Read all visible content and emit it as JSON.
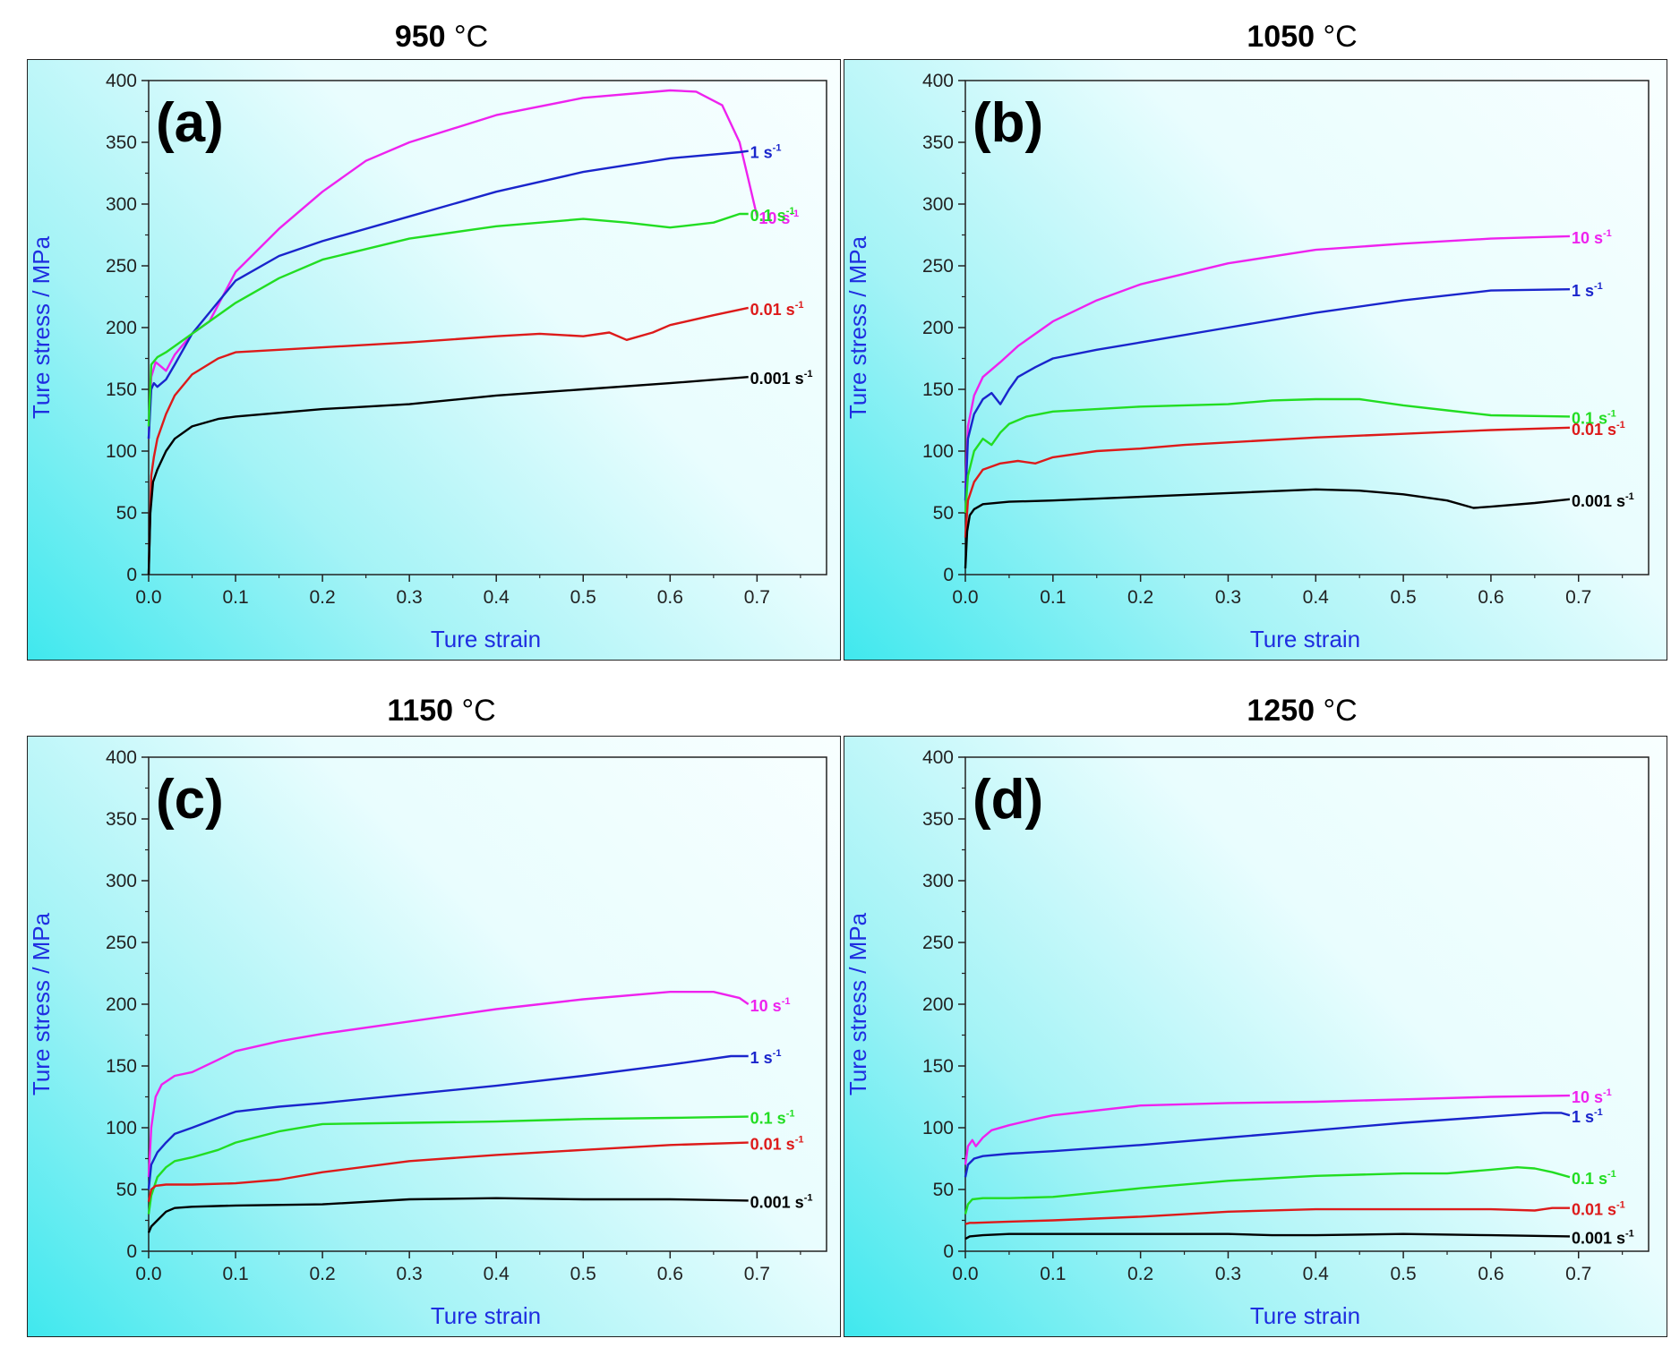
{
  "chart_data": [
    {
      "type": "line",
      "temperature": "950",
      "temperature_unit": "°C",
      "panel_label": "(a)",
      "xlabel": "Ture strain",
      "ylabel": "Ture stress / MPa",
      "xlim": [
        0,
        0.78
      ],
      "ylim": [
        0,
        400
      ],
      "xticks": [
        "0.0",
        "0.1",
        "0.2",
        "0.3",
        "0.4",
        "0.5",
        "0.6",
        "0.7"
      ],
      "yticks": [
        "0",
        "50",
        "100",
        "150",
        "200",
        "250",
        "300",
        "350",
        "400"
      ],
      "series": [
        {
          "name": "10 s-1",
          "rate": "10 s",
          "exp": "-1",
          "color": "#ee22ee",
          "x": [
            0,
            0.003,
            0.008,
            0.015,
            0.02,
            0.03,
            0.05,
            0.07,
            0.1,
            0.15,
            0.2,
            0.25,
            0.3,
            0.4,
            0.5,
            0.6,
            0.63,
            0.66,
            0.68,
            0.69,
            0.7
          ],
          "y": [
            110,
            160,
            172,
            168,
            165,
            178,
            195,
            205,
            245,
            280,
            310,
            335,
            350,
            372,
            386,
            392,
            391,
            380,
            350,
            320,
            290
          ]
        },
        {
          "name": "1 s-1",
          "rate": "1 s",
          "exp": "-1",
          "color": "#1a25cc",
          "x": [
            0,
            0.003,
            0.006,
            0.01,
            0.02,
            0.03,
            0.05,
            0.1,
            0.15,
            0.2,
            0.3,
            0.4,
            0.5,
            0.6,
            0.68,
            0.69
          ],
          "y": [
            110,
            150,
            155,
            152,
            158,
            170,
            195,
            238,
            258,
            270,
            290,
            310,
            326,
            337,
            342,
            343
          ]
        },
        {
          "name": "0.1 s-1",
          "rate": "0.1 s",
          "exp": "-1",
          "color": "#22dd22",
          "x": [
            0,
            0.003,
            0.01,
            0.02,
            0.05,
            0.1,
            0.15,
            0.2,
            0.3,
            0.4,
            0.5,
            0.55,
            0.6,
            0.65,
            0.68,
            0.69
          ],
          "y": [
            120,
            170,
            176,
            180,
            195,
            220,
            240,
            255,
            272,
            282,
            288,
            285,
            281,
            285,
            292,
            292
          ]
        },
        {
          "name": "0.01 s-1",
          "rate": "0.01 s",
          "exp": "-1",
          "color": "#dd1a1a",
          "x": [
            0,
            0.003,
            0.006,
            0.01,
            0.02,
            0.03,
            0.05,
            0.08,
            0.1,
            0.2,
            0.3,
            0.4,
            0.45,
            0.5,
            0.53,
            0.55,
            0.58,
            0.6,
            0.65,
            0.69
          ],
          "y": [
            0,
            80,
            95,
            110,
            130,
            145,
            162,
            175,
            180,
            184,
            188,
            193,
            195,
            193,
            196,
            190,
            196,
            202,
            210,
            216
          ]
        },
        {
          "name": "0.001 s-1",
          "rate": "0.001 s",
          "exp": "-1",
          "color": "#000000",
          "x": [
            0,
            0.002,
            0.005,
            0.01,
            0.02,
            0.03,
            0.05,
            0.08,
            0.1,
            0.2,
            0.3,
            0.4,
            0.5,
            0.6,
            0.69
          ],
          "y": [
            0,
            50,
            75,
            85,
            100,
            110,
            120,
            126,
            128,
            134,
            138,
            145,
            150,
            155,
            160
          ]
        }
      ]
    },
    {
      "type": "line",
      "temperature": "1050",
      "temperature_unit": "°C",
      "panel_label": "(b)",
      "xlabel": "Ture strain",
      "ylabel": "Ture stress / MPa",
      "xlim": [
        0,
        0.78
      ],
      "ylim": [
        0,
        400
      ],
      "xticks": [
        "0.0",
        "0.1",
        "0.2",
        "0.3",
        "0.4",
        "0.5",
        "0.6",
        "0.7"
      ],
      "yticks": [
        "0",
        "50",
        "100",
        "150",
        "200",
        "250",
        "300",
        "350",
        "400"
      ],
      "series": [
        {
          "name": "10 s-1",
          "rate": "10 s",
          "exp": "-1",
          "color": "#ee22ee",
          "x": [
            0,
            0.003,
            0.01,
            0.02,
            0.04,
            0.06,
            0.1,
            0.15,
            0.2,
            0.3,
            0.4,
            0.5,
            0.6,
            0.69
          ],
          "y": [
            70,
            120,
            145,
            160,
            172,
            185,
            205,
            222,
            235,
            252,
            263,
            268,
            272,
            274
          ]
        },
        {
          "name": "1 s-1",
          "rate": "1 s",
          "exp": "-1",
          "color": "#1a25cc",
          "x": [
            0,
            0.003,
            0.01,
            0.02,
            0.03,
            0.04,
            0.05,
            0.06,
            0.08,
            0.1,
            0.15,
            0.2,
            0.3,
            0.4,
            0.5,
            0.6,
            0.69
          ],
          "y": [
            60,
            110,
            130,
            142,
            147,
            138,
            150,
            160,
            168,
            175,
            182,
            188,
            200,
            212,
            222,
            230,
            231
          ]
        },
        {
          "name": "0.1 s-1",
          "rate": "0.1 s",
          "exp": "-1",
          "color": "#22dd22",
          "x": [
            0,
            0.003,
            0.01,
            0.02,
            0.03,
            0.04,
            0.05,
            0.07,
            0.1,
            0.15,
            0.2,
            0.25,
            0.3,
            0.35,
            0.4,
            0.45,
            0.5,
            0.55,
            0.6,
            0.69
          ],
          "y": [
            50,
            80,
            100,
            110,
            105,
            115,
            122,
            128,
            132,
            134,
            136,
            137,
            138,
            141,
            142,
            142,
            137,
            133,
            129,
            128
          ]
        },
        {
          "name": "0.01 s-1",
          "rate": "0.01 s",
          "exp": "-1",
          "color": "#dd1a1a",
          "x": [
            0,
            0.003,
            0.01,
            0.02,
            0.04,
            0.06,
            0.08,
            0.1,
            0.15,
            0.2,
            0.25,
            0.3,
            0.4,
            0.5,
            0.6,
            0.69
          ],
          "y": [
            30,
            60,
            75,
            85,
            90,
            92,
            90,
            95,
            100,
            102,
            105,
            107,
            111,
            114,
            117,
            119
          ]
        },
        {
          "name": "0.001 s-1",
          "rate": "0.001 s",
          "exp": "-1",
          "color": "#000000",
          "x": [
            0,
            0.002,
            0.005,
            0.01,
            0.02,
            0.05,
            0.1,
            0.2,
            0.3,
            0.4,
            0.45,
            0.5,
            0.55,
            0.58,
            0.6,
            0.65,
            0.69
          ],
          "y": [
            5,
            35,
            48,
            53,
            57,
            59,
            60,
            63,
            66,
            69,
            68,
            65,
            60,
            54,
            55,
            58,
            61
          ]
        }
      ]
    },
    {
      "type": "line",
      "temperature": "1150",
      "temperature_unit": "°C",
      "panel_label": "(c)",
      "xlabel": "Ture strain",
      "ylabel": "Ture stress / MPa",
      "xlim": [
        0,
        0.78
      ],
      "ylim": [
        0,
        400
      ],
      "xticks": [
        "0.0",
        "0.1",
        "0.2",
        "0.3",
        "0.4",
        "0.5",
        "0.6",
        "0.7"
      ],
      "yticks": [
        "0",
        "50",
        "100",
        "150",
        "200",
        "250",
        "300",
        "350",
        "400"
      ],
      "series": [
        {
          "name": "10 s-1",
          "rate": "10 s",
          "exp": "-1",
          "color": "#ee22ee",
          "x": [
            0,
            0.003,
            0.008,
            0.015,
            0.03,
            0.05,
            0.08,
            0.1,
            0.15,
            0.2,
            0.3,
            0.4,
            0.5,
            0.6,
            0.65,
            0.68,
            0.69
          ],
          "y": [
            60,
            100,
            125,
            135,
            142,
            145,
            155,
            162,
            170,
            176,
            186,
            196,
            204,
            210,
            210,
            205,
            200
          ]
        },
        {
          "name": "1 s-1",
          "rate": "1 s",
          "exp": "-1",
          "color": "#1a25cc",
          "x": [
            0,
            0.003,
            0.01,
            0.02,
            0.03,
            0.05,
            0.08,
            0.1,
            0.15,
            0.2,
            0.3,
            0.4,
            0.5,
            0.6,
            0.67,
            0.69
          ],
          "y": [
            50,
            70,
            80,
            88,
            95,
            100,
            108,
            113,
            117,
            120,
            127,
            134,
            142,
            151,
            158,
            158
          ]
        },
        {
          "name": "0.1 s-1",
          "rate": "0.1 s",
          "exp": "-1",
          "color": "#22dd22",
          "x": [
            0,
            0.003,
            0.01,
            0.02,
            0.03,
            0.05,
            0.08,
            0.1,
            0.15,
            0.2,
            0.3,
            0.4,
            0.5,
            0.6,
            0.69
          ],
          "y": [
            30,
            45,
            60,
            68,
            73,
            76,
            82,
            88,
            97,
            103,
            104,
            105,
            107,
            108,
            109
          ]
        },
        {
          "name": "0.01 s-1",
          "rate": "0.01 s",
          "exp": "-1",
          "color": "#dd1a1a",
          "x": [
            0,
            0.003,
            0.008,
            0.02,
            0.05,
            0.1,
            0.15,
            0.2,
            0.3,
            0.4,
            0.5,
            0.6,
            0.69
          ],
          "y": [
            40,
            50,
            53,
            54,
            54,
            55,
            58,
            64,
            73,
            78,
            82,
            86,
            88
          ]
        },
        {
          "name": "0.001 s-1",
          "rate": "0.001 s",
          "exp": "-1",
          "color": "#000000",
          "x": [
            0,
            0.003,
            0.01,
            0.02,
            0.03,
            0.05,
            0.1,
            0.2,
            0.3,
            0.4,
            0.5,
            0.6,
            0.69
          ],
          "y": [
            15,
            20,
            25,
            32,
            35,
            36,
            37,
            38,
            42,
            43,
            42,
            42,
            41
          ]
        }
      ]
    },
    {
      "type": "line",
      "temperature": "1250",
      "temperature_unit": "°C",
      "panel_label": "(d)",
      "xlabel": "Ture strain",
      "ylabel": "Ture stress / MPa",
      "xlim": [
        0,
        0.78
      ],
      "ylim": [
        0,
        400
      ],
      "xticks": [
        "0.0",
        "0.1",
        "0.2",
        "0.3",
        "0.4",
        "0.5",
        "0.6",
        "0.7"
      ],
      "yticks": [
        "0",
        "50",
        "100",
        "150",
        "200",
        "250",
        "300",
        "350",
        "400"
      ],
      "series": [
        {
          "name": "10 s-1",
          "rate": "10 s",
          "exp": "-1",
          "color": "#ee22ee",
          "x": [
            0,
            0.003,
            0.008,
            0.012,
            0.02,
            0.03,
            0.05,
            0.08,
            0.1,
            0.2,
            0.3,
            0.4,
            0.5,
            0.6,
            0.69
          ],
          "y": [
            70,
            85,
            90,
            85,
            92,
            98,
            102,
            107,
            110,
            118,
            120,
            121,
            123,
            125,
            126
          ]
        },
        {
          "name": "1 s-1",
          "rate": "1 s",
          "exp": "-1",
          "color": "#1a25cc",
          "x": [
            0,
            0.003,
            0.01,
            0.02,
            0.05,
            0.1,
            0.2,
            0.3,
            0.4,
            0.5,
            0.6,
            0.66,
            0.68,
            0.69
          ],
          "y": [
            60,
            70,
            75,
            77,
            79,
            81,
            86,
            92,
            98,
            104,
            109,
            112,
            112,
            110
          ]
        },
        {
          "name": "0.1 s-1",
          "rate": "0.1 s",
          "exp": "-1",
          "color": "#22dd22",
          "x": [
            0,
            0.003,
            0.008,
            0.02,
            0.05,
            0.1,
            0.2,
            0.3,
            0.4,
            0.5,
            0.55,
            0.6,
            0.63,
            0.65,
            0.67,
            0.69
          ],
          "y": [
            30,
            38,
            42,
            43,
            43,
            44,
            51,
            57,
            61,
            63,
            63,
            66,
            68,
            67,
            64,
            60
          ]
        },
        {
          "name": "0.01 s-1",
          "rate": "0.01 s",
          "exp": "-1",
          "color": "#dd1a1a",
          "x": [
            0,
            0.005,
            0.01,
            0.05,
            0.1,
            0.2,
            0.3,
            0.4,
            0.5,
            0.6,
            0.65,
            0.66,
            0.67,
            0.69
          ],
          "y": [
            22,
            23,
            23,
            24,
            25,
            28,
            32,
            34,
            34,
            34,
            33,
            34,
            35,
            35
          ]
        },
        {
          "name": "0.001 s-1",
          "rate": "0.001 s",
          "exp": "-1",
          "color": "#000000",
          "x": [
            0,
            0.005,
            0.02,
            0.05,
            0.1,
            0.2,
            0.3,
            0.35,
            0.4,
            0.5,
            0.6,
            0.69
          ],
          "y": [
            10,
            12,
            13,
            14,
            14,
            14,
            14,
            13,
            13,
            14,
            13,
            12
          ]
        }
      ]
    }
  ]
}
